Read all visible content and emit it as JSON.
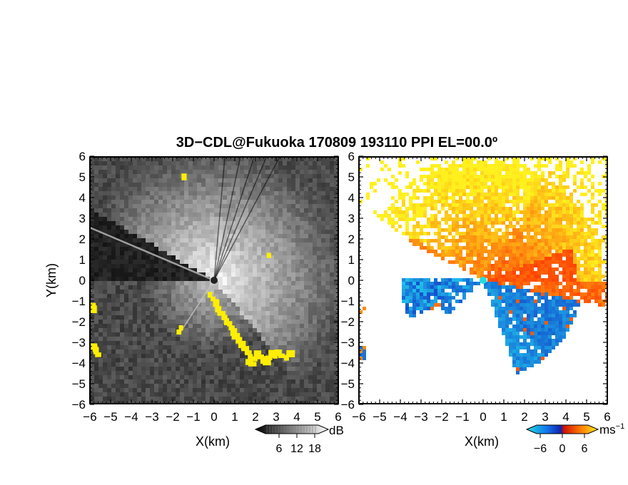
{
  "title": "3D−CDL@Fukuoka 170809 193110 PPI EL=00.0º",
  "colors": {
    "background": "#ffffff",
    "axis": "#000000",
    "rain_mask": "#ffee00",
    "neg_velocity": "#1133ee",
    "pos_velocity": "#ff5500",
    "radar_marker_left": "#333333",
    "radar_marker_right": "#22dddd"
  },
  "chart_data": [
    {
      "type": "heatmap",
      "panel": "left",
      "quantity": "SNR",
      "xlabel": "X(km)",
      "ylabel": "Y(km)",
      "xlim": [
        -6,
        6
      ],
      "ylim": [
        -6,
        6
      ],
      "xticks": [
        "−6",
        "−5",
        "−4",
        "−3",
        "−2",
        "−1",
        "0",
        "1",
        "2",
        "3",
        "4",
        "5",
        "6"
      ],
      "yticks": [
        "−6",
        "−5",
        "−4",
        "−3",
        "−2",
        "−1",
        "0",
        "1",
        "2",
        "3",
        "4",
        "5",
        "6"
      ],
      "colorbar": {
        "unit": "dB",
        "ticks": [
          "6",
          "12",
          "18"
        ],
        "range": [
          0,
          24
        ]
      },
      "description_values": {
        "beam_shadow_sectors_deg": [
          [
            150,
            180
          ],
          [
            200,
            235
          ]
        ],
        "bright_sector_deg": [
          -45,
          150
        ]
      }
    },
    {
      "type": "heatmap",
      "panel": "right",
      "quantity": "Doppler velocity",
      "xlabel": "X(km)",
      "ylabel": "",
      "xlim": [
        -6,
        6
      ],
      "ylim": [
        -6,
        6
      ],
      "xticks": [
        "−6",
        "−5",
        "−4",
        "−3",
        "−2",
        "−1",
        "0",
        "1",
        "2",
        "3",
        "4",
        "5",
        "6"
      ],
      "yticks": [
        "−6",
        "−5",
        "−4",
        "−3",
        "−2",
        "−1",
        "0",
        "1",
        "2",
        "3",
        "4",
        "5",
        "6"
      ],
      "colorbar": {
        "unit": "ms",
        "unit_exp": "−1",
        "ticks": [
          "−6",
          "0",
          "6"
        ],
        "range": [
          -8,
          8
        ]
      }
    }
  ]
}
